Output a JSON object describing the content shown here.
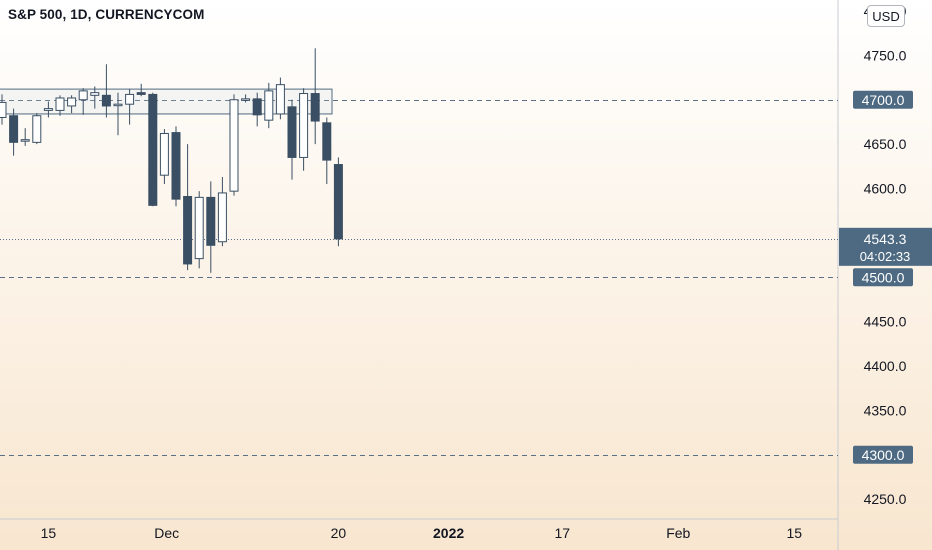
{
  "symbol_title": "S&P 500, 1D, CURRENCYCOM",
  "currency": "USD",
  "colors": {
    "candle": "#3a4f63",
    "bg_top": "#ffffff",
    "bg_bottom": "#f8e6cf",
    "level_line": "#5a7086",
    "price_label_bg": "#4d6a82",
    "axis_text": "#131722"
  },
  "chart_data": {
    "type": "candlestick",
    "title": "S&P 500, 1D, CURRENCYCOM",
    "ylim": [
      4240,
      4800
    ],
    "y_ticks": [
      {
        "value": 4800,
        "label": "4800.0"
      },
      {
        "value": 4750,
        "label": "4750.0"
      },
      {
        "value": 4650,
        "label": "4650.0"
      },
      {
        "value": 4600,
        "label": "4600.0"
      },
      {
        "value": 4550,
        "label": "4550.0"
      },
      {
        "value": 4450,
        "label": "4450.0"
      },
      {
        "value": 4400,
        "label": "4400.0"
      },
      {
        "value": 4350,
        "label": "4350.0"
      },
      {
        "value": 4250,
        "label": "4250.0"
      }
    ],
    "x_ticks": [
      {
        "label": "15",
        "bold": false
      },
      {
        "label": "Dec",
        "bold": false
      },
      {
        "label": "20",
        "bold": false
      },
      {
        "label": "2022",
        "bold": true
      },
      {
        "label": "17",
        "bold": false
      },
      {
        "label": "Feb",
        "bold": false
      },
      {
        "label": "15",
        "bold": false
      }
    ],
    "levels": [
      {
        "value": 4700,
        "label": "4700.0"
      },
      {
        "value": 4500,
        "label": "4500.0"
      },
      {
        "value": 4300,
        "label": "4300.0"
      }
    ],
    "current_price": {
      "value": 4543.3,
      "label": "4543.3",
      "countdown": "04:02:33"
    },
    "zone": {
      "low": 4684,
      "high": 4712
    },
    "candles": [
      {
        "o": 4680,
        "h": 4706,
        "l": 4672,
        "c": 4697
      },
      {
        "o": 4682,
        "h": 4690,
        "l": 4637,
        "c": 4652
      },
      {
        "o": 4655,
        "h": 4668,
        "l": 4648,
        "c": 4655
      },
      {
        "o": 4652,
        "h": 4685,
        "l": 4650,
        "c": 4682
      },
      {
        "o": 4688,
        "h": 4698,
        "l": 4680,
        "c": 4690
      },
      {
        "o": 4688,
        "h": 4705,
        "l": 4682,
        "c": 4702
      },
      {
        "o": 4693,
        "h": 4705,
        "l": 4685,
        "c": 4702
      },
      {
        "o": 4700,
        "h": 4713,
        "l": 4683,
        "c": 4710
      },
      {
        "o": 4705,
        "h": 4715,
        "l": 4690,
        "c": 4708
      },
      {
        "o": 4705,
        "h": 4740,
        "l": 4680,
        "c": 4693
      },
      {
        "o": 4695,
        "h": 4708,
        "l": 4660,
        "c": 4695
      },
      {
        "o": 4695,
        "h": 4712,
        "l": 4672,
        "c": 4706
      },
      {
        "o": 4708,
        "h": 4718,
        "l": 4704,
        "c": 4706
      },
      {
        "o": 4706,
        "h": 4708,
        "l": 4580,
        "c": 4581
      },
      {
        "o": 4615,
        "h": 4667,
        "l": 4605,
        "c": 4662
      },
      {
        "o": 4663,
        "h": 4670,
        "l": 4580,
        "c": 4588
      },
      {
        "o": 4591,
        "h": 4650,
        "l": 4508,
        "c": 4515
      },
      {
        "o": 4521,
        "h": 4597,
        "l": 4510,
        "c": 4590
      },
      {
        "o": 4590,
        "h": 4608,
        "l": 4505,
        "c": 4536
      },
      {
        "o": 4540,
        "h": 4613,
        "l": 4535,
        "c": 4595
      },
      {
        "o": 4597,
        "h": 4706,
        "l": 4592,
        "c": 4700
      },
      {
        "o": 4700,
        "h": 4706,
        "l": 4697,
        "c": 4701
      },
      {
        "o": 4701,
        "h": 4708,
        "l": 4670,
        "c": 4683
      },
      {
        "o": 4677,
        "h": 4719,
        "l": 4668,
        "c": 4710
      },
      {
        "o": 4684,
        "h": 4725,
        "l": 4678,
        "c": 4717
      },
      {
        "o": 4692,
        "h": 4700,
        "l": 4610,
        "c": 4635
      },
      {
        "o": 4635,
        "h": 4713,
        "l": 4620,
        "c": 4707
      },
      {
        "o": 4707,
        "h": 4758,
        "l": 4650,
        "c": 4676
      },
      {
        "o": 4674,
        "h": 4680,
        "l": 4605,
        "c": 4632
      },
      {
        "o": 4627,
        "h": 4635,
        "l": 4535,
        "c": 4543.3
      }
    ]
  }
}
